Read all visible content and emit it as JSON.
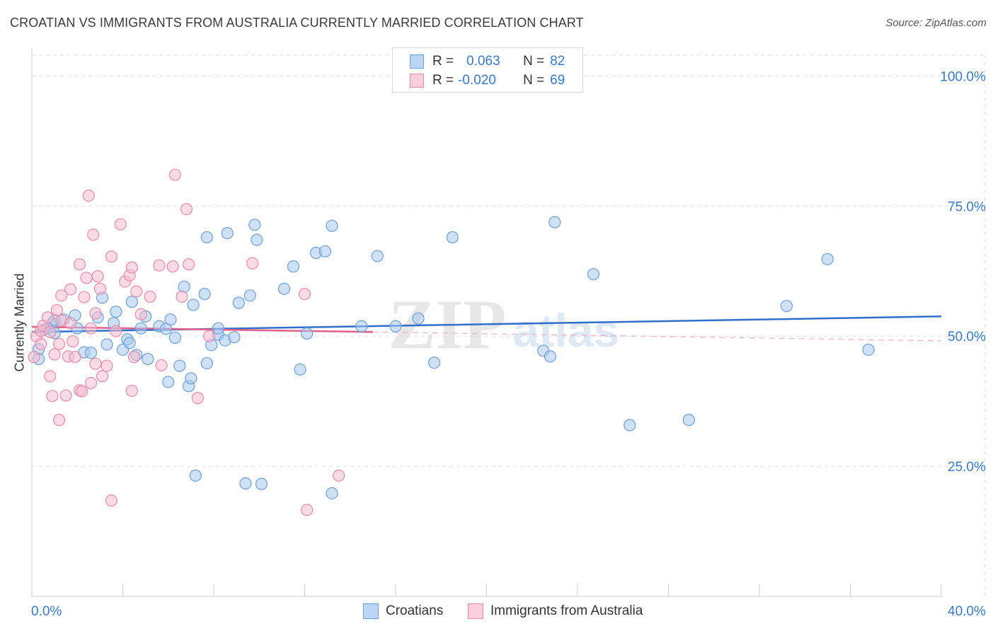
{
  "title": "CROATIAN VS IMMIGRANTS FROM AUSTRALIA CURRENTLY MARRIED CORRELATION CHART",
  "source": "Source: ZipAtlas.com",
  "watermark": {
    "zip": "ZIP",
    "atlas": "atlas"
  },
  "legend": {
    "r_label": "R =",
    "n_label": "N =",
    "croatians": {
      "r": "0.063",
      "n": "82"
    },
    "australia": {
      "r": "-0.020",
      "n": "69"
    }
  },
  "bottom_legend": {
    "croatians": "Croatians",
    "australia": "Immigrants from Australia"
  },
  "colors": {
    "blue_fill": "#a8c8f0",
    "blue_stroke": "#6c9fdc",
    "blue_line": "#2f6fcc",
    "pink_fill": "#f5bcd0",
    "pink_stroke": "#e88aa8",
    "pink_line": "#e0608a",
    "axis_text": "#3a78c8",
    "grid": "#dedede"
  },
  "chart_data": {
    "type": "scatter",
    "title": "CROATIAN VS IMMIGRANTS FROM AUSTRALIA CURRENTLY MARRIED CORRELATION CHART",
    "xlabel": "",
    "ylabel": "Currently Married",
    "xlim": [
      0,
      40
    ],
    "ylim": [
      0,
      104
    ],
    "x_tick_labels": [
      "0.0%",
      "40.0%"
    ],
    "y_ticks": [
      25,
      50,
      75,
      100
    ],
    "y_tick_labels": [
      "25.0%",
      "50.0%",
      "75.0%",
      "100.0%"
    ],
    "grid": true,
    "series": [
      {
        "name": "Croatians",
        "trend": {
          "x": [
            0,
            40
          ],
          "y": [
            50.8,
            53.8
          ]
        },
        "points": [
          [
            0.3,
            47.5
          ],
          [
            0.3,
            45.6
          ],
          [
            0.5,
            51.2
          ],
          [
            0.7,
            51.5
          ],
          [
            0.9,
            52.5
          ],
          [
            1.0,
            53.1
          ],
          [
            1.0,
            50.6
          ],
          [
            1.4,
            53.2
          ],
          [
            1.9,
            54.0
          ],
          [
            2.0,
            51.5
          ],
          [
            2.3,
            46.9
          ],
          [
            2.6,
            46.8
          ],
          [
            2.9,
            53.6
          ],
          [
            3.1,
            57.4
          ],
          [
            3.3,
            48.4
          ],
          [
            3.6,
            52.5
          ],
          [
            3.7,
            54.7
          ],
          [
            4.0,
            47.4
          ],
          [
            4.2,
            49.4
          ],
          [
            4.3,
            48.7
          ],
          [
            4.4,
            56.6
          ],
          [
            4.6,
            46.4
          ],
          [
            4.8,
            51.5
          ],
          [
            5.0,
            53.8
          ],
          [
            5.1,
            45.6
          ],
          [
            5.6,
            51.9
          ],
          [
            5.9,
            51.4
          ],
          [
            6.0,
            41.2
          ],
          [
            6.1,
            53.2
          ],
          [
            6.3,
            49.7
          ],
          [
            6.5,
            44.3
          ],
          [
            6.7,
            59.5
          ],
          [
            6.9,
            40.4
          ],
          [
            7.0,
            41.9
          ],
          [
            7.1,
            56.0
          ],
          [
            7.2,
            23.2
          ],
          [
            7.6,
            58.1
          ],
          [
            7.7,
            44.8
          ],
          [
            7.7,
            69.0
          ],
          [
            7.9,
            48.3
          ],
          [
            8.2,
            50.3
          ],
          [
            8.2,
            51.5
          ],
          [
            8.5,
            49.2
          ],
          [
            8.6,
            69.8
          ],
          [
            8.9,
            49.8
          ],
          [
            9.1,
            56.4
          ],
          [
            9.4,
            21.7
          ],
          [
            9.6,
            57.8
          ],
          [
            9.8,
            71.4
          ],
          [
            9.9,
            68.5
          ],
          [
            10.1,
            21.6
          ],
          [
            11.1,
            59.1
          ],
          [
            11.5,
            63.4
          ],
          [
            11.8,
            43.6
          ],
          [
            12.1,
            50.5
          ],
          [
            12.5,
            66.0
          ],
          [
            12.9,
            66.3
          ],
          [
            13.2,
            71.2
          ],
          [
            13.2,
            19.8
          ],
          [
            14.5,
            51.9
          ],
          [
            15.2,
            65.4
          ],
          [
            16.0,
            51.9
          ],
          [
            17.0,
            53.4
          ],
          [
            17.7,
            44.9
          ],
          [
            18.5,
            69.0
          ],
          [
            22.5,
            47.2
          ],
          [
            22.8,
            46.1
          ],
          [
            23.0,
            71.9
          ],
          [
            24.7,
            61.9
          ],
          [
            26.3,
            32.9
          ],
          [
            28.9,
            33.9
          ],
          [
            33.2,
            55.8
          ],
          [
            35.0,
            64.8
          ],
          [
            36.8,
            47.4
          ]
        ]
      },
      {
        "name": "Immigrants from Australia",
        "trend": {
          "x": [
            0,
            15
          ],
          "y": [
            51.8,
            50.8
          ]
        },
        "trend_extension": {
          "x": [
            15,
            40
          ],
          "y": [
            50.8,
            49.1
          ]
        },
        "points": [
          [
            0.1,
            46.0
          ],
          [
            0.2,
            50.0
          ],
          [
            0.4,
            48.5
          ],
          [
            0.4,
            51.0
          ],
          [
            0.5,
            52.0
          ],
          [
            0.7,
            53.6
          ],
          [
            0.8,
            42.3
          ],
          [
            0.8,
            50.8
          ],
          [
            0.9,
            38.5
          ],
          [
            1.0,
            46.5
          ],
          [
            1.1,
            55.0
          ],
          [
            1.2,
            33.9
          ],
          [
            1.2,
            48.5
          ],
          [
            1.3,
            53.0
          ],
          [
            1.3,
            57.8
          ],
          [
            1.5,
            38.6
          ],
          [
            1.6,
            46.1
          ],
          [
            1.7,
            52.5
          ],
          [
            1.7,
            59.0
          ],
          [
            1.8,
            49.0
          ],
          [
            1.9,
            46.0
          ],
          [
            2.1,
            39.6
          ],
          [
            2.1,
            63.8
          ],
          [
            2.2,
            39.4
          ],
          [
            2.3,
            57.5
          ],
          [
            2.4,
            61.2
          ],
          [
            2.5,
            77.0
          ],
          [
            2.6,
            51.5
          ],
          [
            2.6,
            41.0
          ],
          [
            2.7,
            69.5
          ],
          [
            2.8,
            44.7
          ],
          [
            2.8,
            54.4
          ],
          [
            2.9,
            61.5
          ],
          [
            3.0,
            59.1
          ],
          [
            3.1,
            42.3
          ],
          [
            3.3,
            44.3
          ],
          [
            3.5,
            18.4
          ],
          [
            3.5,
            65.3
          ],
          [
            3.7,
            51.0
          ],
          [
            3.9,
            71.5
          ],
          [
            4.1,
            60.5
          ],
          [
            4.3,
            61.7
          ],
          [
            4.4,
            63.2
          ],
          [
            4.4,
            39.5
          ],
          [
            4.5,
            46.0
          ],
          [
            4.6,
            58.6
          ],
          [
            4.8,
            54.2
          ],
          [
            5.2,
            57.6
          ],
          [
            5.6,
            63.6
          ],
          [
            5.7,
            44.4
          ],
          [
            6.2,
            63.4
          ],
          [
            6.3,
            81.0
          ],
          [
            6.6,
            57.6
          ],
          [
            6.8,
            74.4
          ],
          [
            6.9,
            63.8
          ],
          [
            7.3,
            38.1
          ],
          [
            7.8,
            50.0
          ],
          [
            9.7,
            64.0
          ],
          [
            12.0,
            58.1
          ],
          [
            12.1,
            16.6
          ],
          [
            13.5,
            23.2
          ]
        ]
      }
    ]
  }
}
